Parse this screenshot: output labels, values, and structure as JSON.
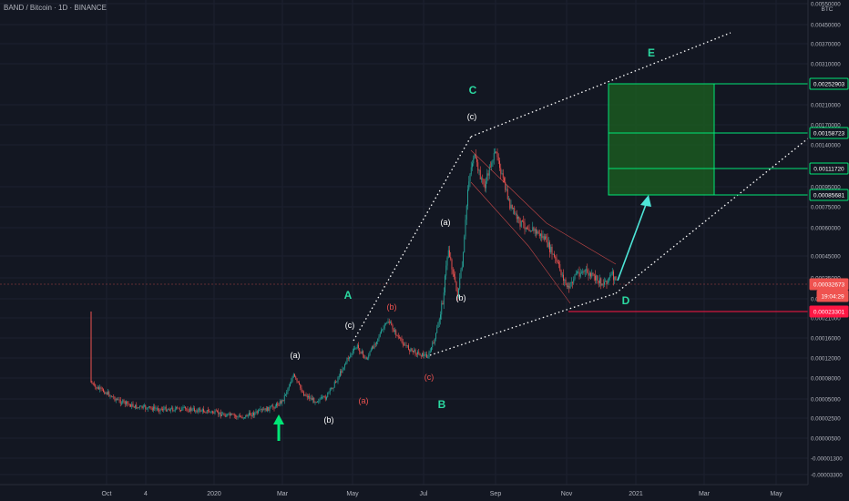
{
  "symbol": {
    "pair": "BAND / Bitcoin",
    "interval": "1D",
    "exchange": "BINANCE"
  },
  "chart_data": {
    "type": "candlestick",
    "currency": "BTC",
    "y_axis": {
      "ticks": [
        "0.00550000",
        "0.00450000",
        "0.00370000",
        "0.00310000",
        "0.00210000",
        "0.00170000",
        "0.00140000",
        "0.00095000",
        "0.00075000",
        "0.00060000",
        "0.00045000",
        "0.00035000",
        "0.00026000",
        "0.00021000",
        "0.00016000",
        "0.00012000",
        "0.00008000",
        "0.00005000",
        "0.00002500",
        "0.00000500",
        "-0.00001300",
        "-0.00003300"
      ]
    },
    "x_axis": {
      "ticks": [
        "Oct",
        "4",
        "2020",
        "Mar",
        "May",
        "Jul",
        "Sep",
        "Nov",
        "2021",
        "Mar",
        "May"
      ]
    },
    "price_tags": [
      {
        "value": "0.00252903",
        "kind": "target"
      },
      {
        "value": "0.00158723",
        "kind": "target"
      },
      {
        "value": "0.00111720",
        "kind": "target"
      },
      {
        "value": "0.00085681",
        "kind": "target"
      },
      {
        "value": "0.00032673",
        "kind": "last"
      },
      {
        "value": "19:04:29",
        "kind": "countdown"
      },
      {
        "value": "0.00023301",
        "kind": "support"
      }
    ],
    "wave_labels": [
      {
        "text": "A",
        "color": "#2bd9a1"
      },
      {
        "text": "B",
        "color": "#2bd9a1"
      },
      {
        "text": "C",
        "color": "#2bd9a1"
      },
      {
        "text": "D",
        "color": "#2bd9a1"
      },
      {
        "text": "E",
        "color": "#2bd9a1"
      },
      {
        "text": "(a)",
        "color": "#ffffff"
      },
      {
        "text": "(b)",
        "color": "#ffffff"
      },
      {
        "text": "(c)",
        "color": "#ffffff"
      },
      {
        "text": "(a)",
        "color": "#ef5350"
      },
      {
        "text": "(b)",
        "color": "#ef5350"
      },
      {
        "text": "(c)",
        "color": "#ef5350"
      },
      {
        "text": "(a)",
        "color": "#ffffff"
      },
      {
        "text": "(b)",
        "color": "#ffffff"
      },
      {
        "text": "(c)",
        "color": "#ffffff"
      }
    ],
    "colors": {
      "up": "#26a69a",
      "down": "#ef5350",
      "target_zone": "#1b5e20",
      "target_line": "#00e676",
      "support_line": "#ff1744",
      "projection_arrow": "#4ee6d8",
      "buy_arrow": "#00e676"
    }
  }
}
